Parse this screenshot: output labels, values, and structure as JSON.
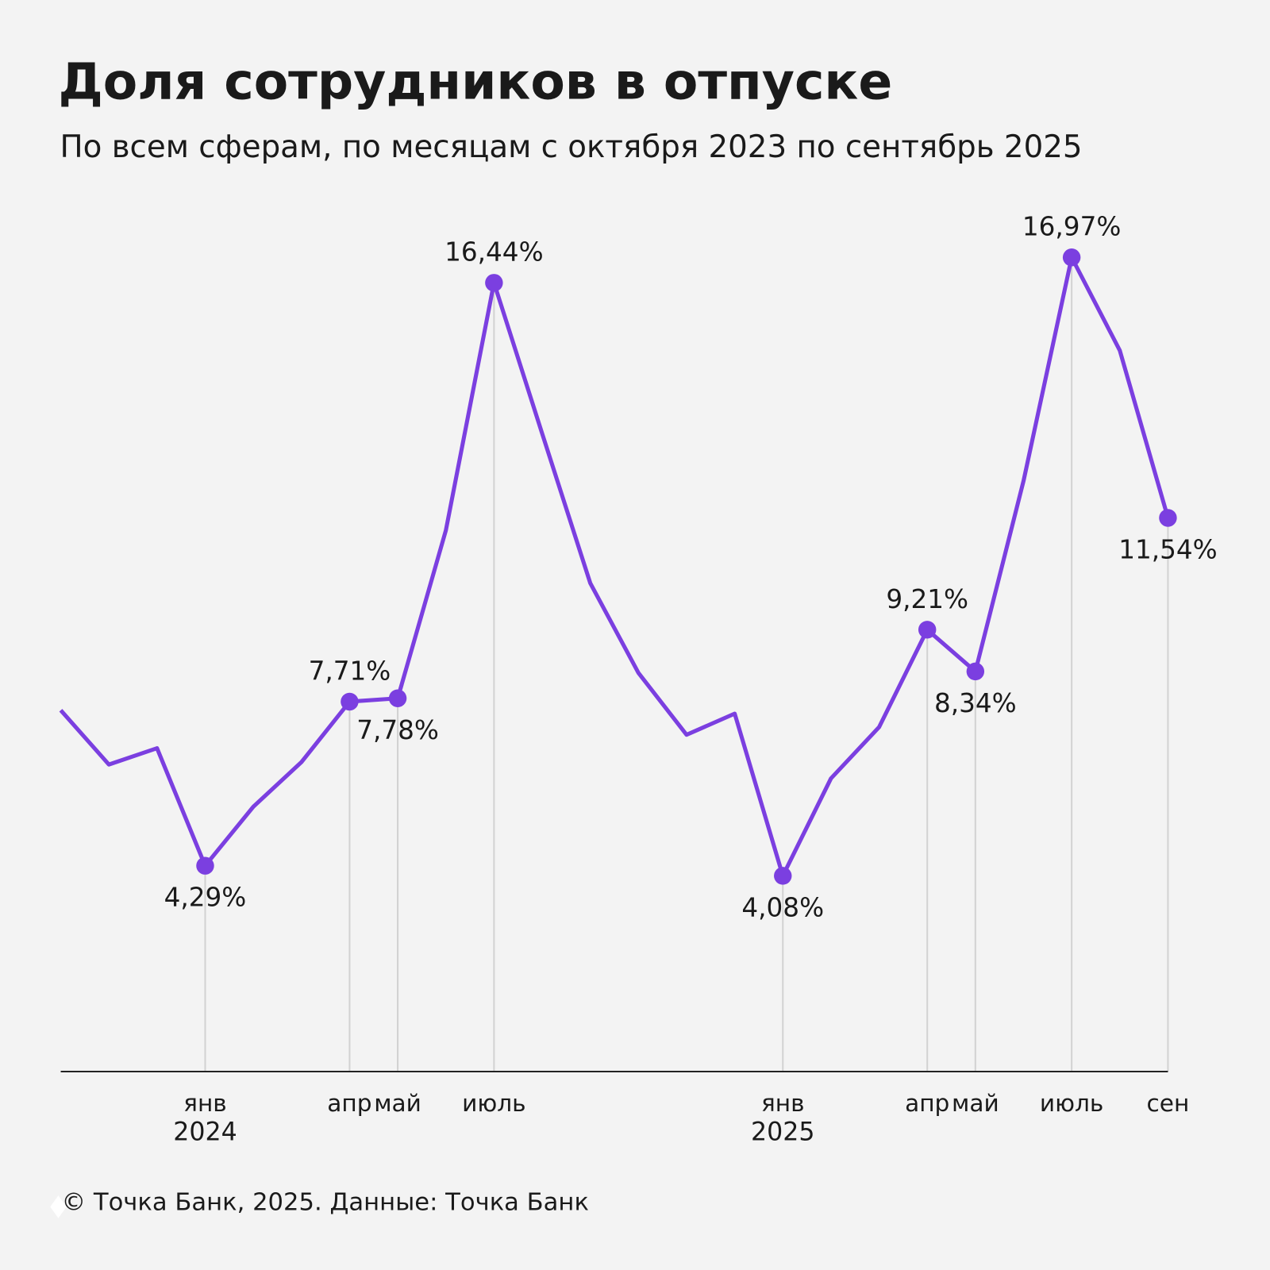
{
  "chart_data": {
    "type": "line",
    "title": "Доля сотрудников в отпуске",
    "subtitle": "По всем сферам, по месяцам с октября 2023 по сентябрь 2025",
    "source": "© Точка Банк, 2025. Данные: Точка Банк",
    "categories": [
      null,
      null,
      null,
      "янв",
      null,
      null,
      "апр",
      "май",
      null,
      "июль",
      null,
      null,
      null,
      null,
      null,
      "янв",
      null,
      null,
      "апр",
      "май",
      null,
      "июль",
      null,
      "сен"
    ],
    "category_years": [
      null,
      null,
      null,
      "2024",
      null,
      null,
      null,
      null,
      null,
      null,
      null,
      null,
      null,
      null,
      null,
      "2025",
      null,
      null,
      null,
      null,
      null,
      null,
      null,
      null
    ],
    "series": [
      {
        "name": "Доля сотрудников в отпуске",
        "color": "#7b3fe0",
        "values": [
          7.53,
          6.4,
          6.74,
          4.29,
          5.52,
          6.45,
          7.71,
          7.78,
          11.28,
          16.44,
          13.3,
          10.18,
          8.31,
          7.02,
          7.46,
          4.08,
          6.11,
          7.18,
          9.21,
          8.34,
          12.31,
          16.97,
          15.03,
          11.54
        ],
        "value_labels": [
          null,
          null,
          null,
          "4,29%",
          null,
          null,
          "7,71%",
          "7,78%",
          null,
          "16,44%",
          null,
          null,
          null,
          null,
          null,
          "4,08%",
          null,
          null,
          "9,21%",
          "8,34%",
          null,
          "16,97%",
          null,
          "11,54%"
        ]
      }
    ],
    "ylim": [
      0,
      17
    ],
    "grid": false,
    "legend": false
  }
}
